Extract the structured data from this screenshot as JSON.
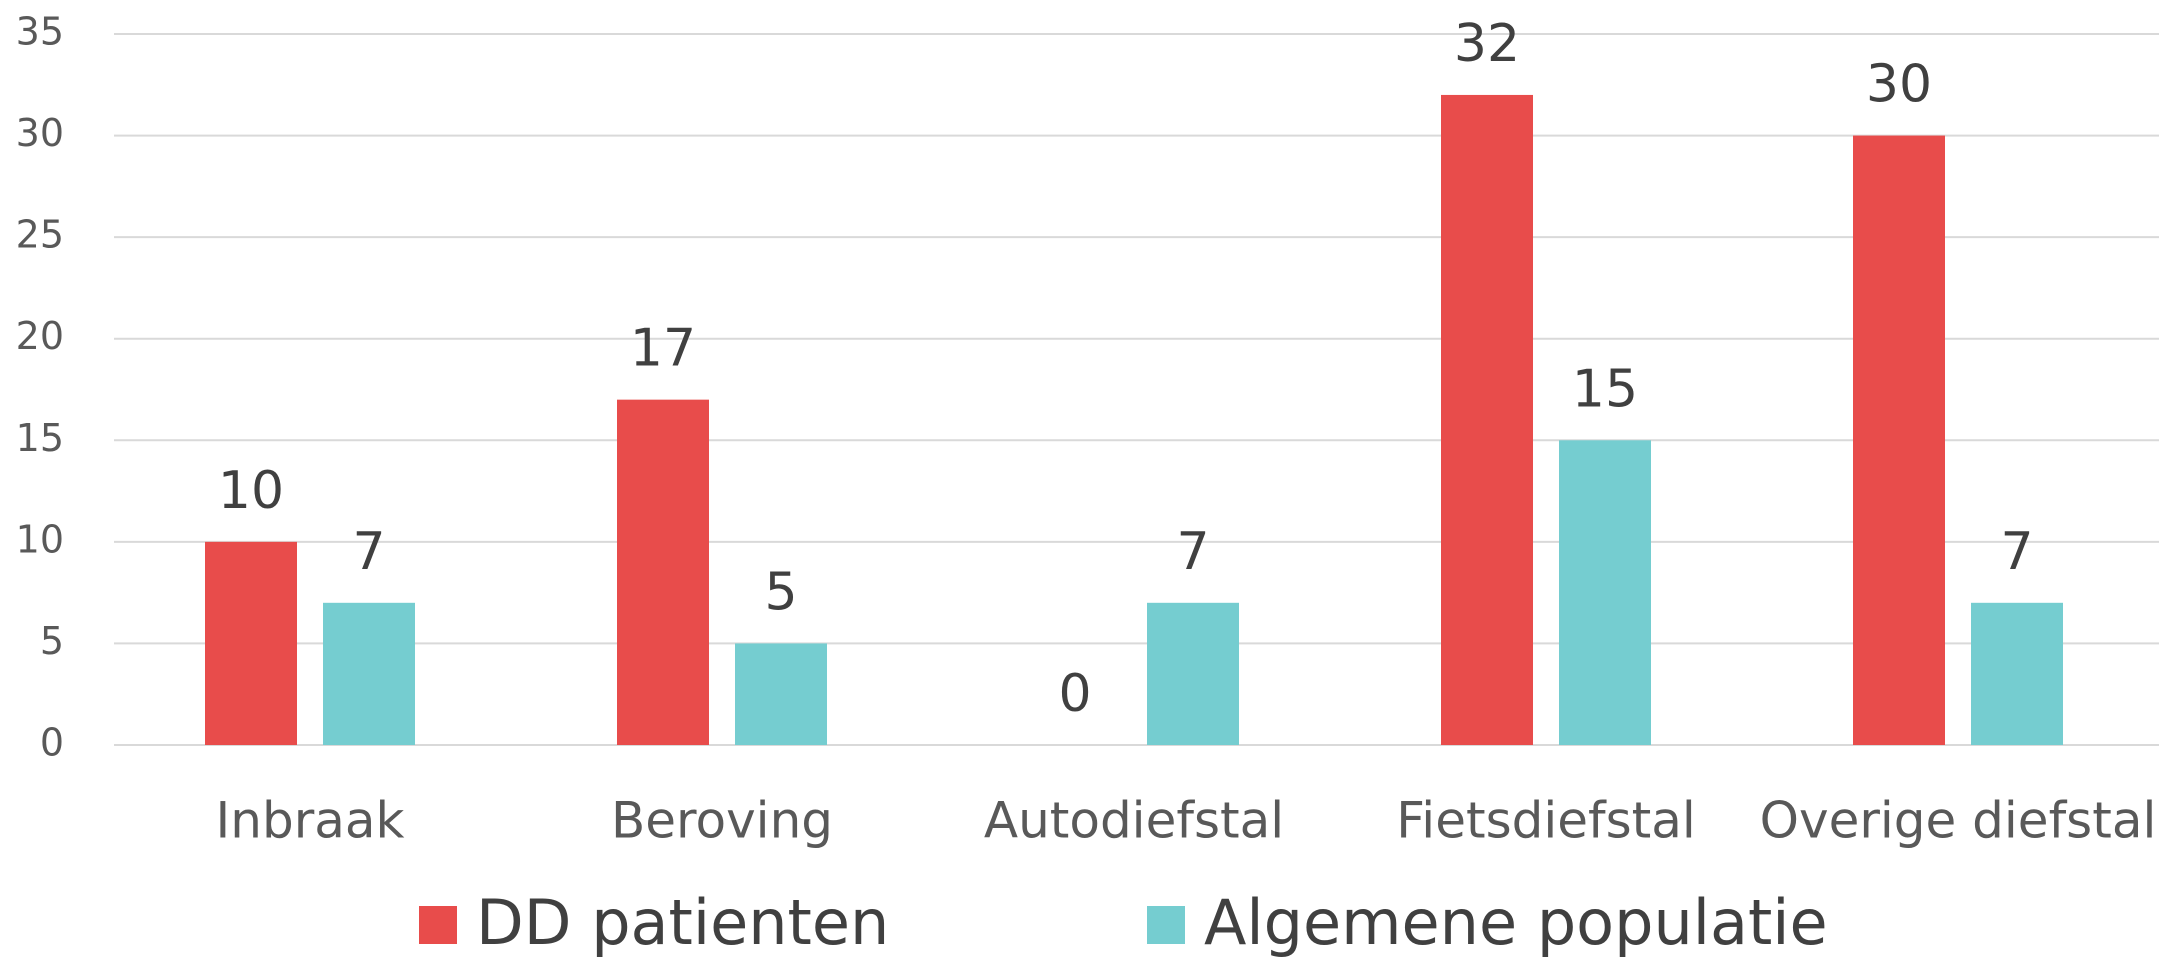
{
  "chart_data": {
    "type": "bar",
    "categories": [
      "Inbraak",
      "Beroving",
      "Autodiefstal",
      "Fietsdiefstal",
      "Overige diefstal"
    ],
    "series": [
      {
        "name": "DD patienten",
        "color": "#e84c4b",
        "values": [
          10,
          17,
          0,
          32,
          30
        ]
      },
      {
        "name": "Algemene populatie",
        "color": "#75cdd0",
        "values": [
          7,
          5,
          7,
          15,
          7
        ]
      }
    ],
    "ylim": [
      0,
      35
    ],
    "yticks": [
      0,
      5,
      10,
      15,
      20,
      25,
      30,
      35
    ],
    "grid": true,
    "legend": "bottom"
  }
}
